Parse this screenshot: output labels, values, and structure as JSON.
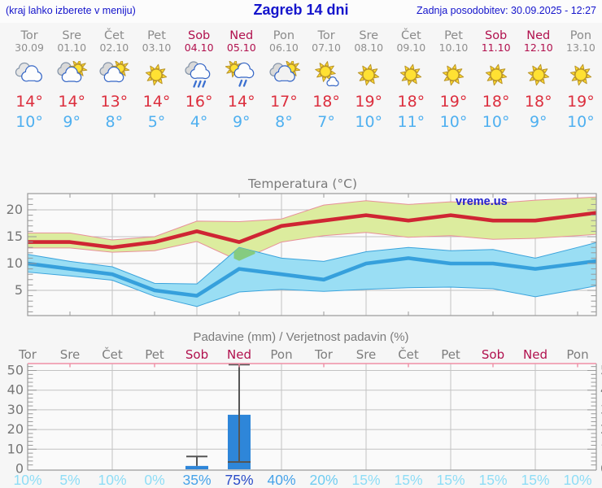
{
  "header": {
    "left_note": "(kraj lahko izberete v meniju)",
    "title": "Zagreb 14 dni",
    "updated": "Zadnja posodobitev: 30.09.2025 - 12:27"
  },
  "watermark": "vreme.us",
  "forecast": {
    "days": [
      {
        "name": "Tor",
        "date": "30.09",
        "weekend": false,
        "icon": "clouds",
        "high": "14°",
        "low": "10°"
      },
      {
        "name": "Sre",
        "date": "01.10",
        "weekend": false,
        "icon": "sun-cloud",
        "high": "14°",
        "low": "9°"
      },
      {
        "name": "Čet",
        "date": "02.10",
        "weekend": false,
        "icon": "sun-cloud",
        "high": "13°",
        "low": "8°"
      },
      {
        "name": "Pet",
        "date": "03.10",
        "weekend": false,
        "icon": "sun",
        "high": "14°",
        "low": "5°"
      },
      {
        "name": "Sob",
        "date": "04.10",
        "weekend": true,
        "icon": "cloud-rain",
        "high": "16°",
        "low": "4°"
      },
      {
        "name": "Ned",
        "date": "05.10",
        "weekend": true,
        "icon": "sun-rain",
        "high": "14°",
        "low": "9°"
      },
      {
        "name": "Pon",
        "date": "06.10",
        "weekend": false,
        "icon": "cloud-sun",
        "high": "17°",
        "low": "8°"
      },
      {
        "name": "Tor",
        "date": "07.10",
        "weekend": false,
        "icon": "sun-small-cloud",
        "high": "18°",
        "low": "7°"
      },
      {
        "name": "Sre",
        "date": "08.10",
        "weekend": false,
        "icon": "sun",
        "high": "19°",
        "low": "10°"
      },
      {
        "name": "Čet",
        "date": "09.10",
        "weekend": false,
        "icon": "sun",
        "high": "18°",
        "low": "11°"
      },
      {
        "name": "Pet",
        "date": "10.10",
        "weekend": false,
        "icon": "sun",
        "high": "19°",
        "low": "10°"
      },
      {
        "name": "Sob",
        "date": "11.10",
        "weekend": true,
        "icon": "sun",
        "high": "18°",
        "low": "10°"
      },
      {
        "name": "Ned",
        "date": "12.10",
        "weekend": true,
        "icon": "sun",
        "high": "18°",
        "low": "9°"
      },
      {
        "name": "Pon",
        "date": "13.10",
        "weekend": false,
        "icon": "sun",
        "high": "19°",
        "low": "10°"
      }
    ]
  },
  "chart_data": [
    {
      "type": "line",
      "title": "Temperatura (°C)",
      "categories": [
        "Tor",
        "Sre",
        "Čet",
        "Pet",
        "Sob",
        "Ned",
        "Pon",
        "Tor",
        "Sre",
        "Čet",
        "Pet",
        "Sob",
        "Ned",
        "Pon"
      ],
      "ylim": [
        0.3,
        23.2
      ],
      "yticks": [
        5,
        10,
        15,
        20
      ],
      "grid": true,
      "series": [
        {
          "name": "max-temp",
          "color": "#cf2533",
          "values": [
            14,
            14,
            13,
            14,
            16,
            14,
            17,
            18,
            19,
            18,
            19,
            18,
            18,
            19
          ]
        },
        {
          "name": "min-temp",
          "color": "#36a0dc",
          "values": [
            10,
            9,
            8,
            5,
            4,
            9,
            8,
            7,
            10,
            11,
            10,
            10,
            9,
            10
          ]
        }
      ],
      "bands": [
        {
          "name": "max-temp-range",
          "fill": "#dcec9e",
          "stroke": "#e8909a",
          "upper": [
            15.7,
            15.7,
            14.4,
            15.0,
            17.9,
            17.8,
            18.3,
            20.9,
            21.7,
            21.0,
            21.5,
            21.2,
            21.8,
            22.2
          ],
          "lower": [
            12.9,
            12.9,
            12.1,
            12.4,
            14.1,
            10.5,
            14.0,
            15.2,
            15.8,
            14.9,
            15.2,
            14.5,
            14.7,
            15.2
          ]
        },
        {
          "name": "min-temp-range",
          "fill": "#9adef4",
          "stroke": "#3aa3dc",
          "upper": [
            11.7,
            10.4,
            9.4,
            6.3,
            6.2,
            13.0,
            11.0,
            10.4,
            12.2,
            13.0,
            12.4,
            12.6,
            11.0,
            13.0
          ],
          "lower": [
            8.4,
            7.7,
            6.9,
            3.9,
            2.0,
            4.7,
            5.2,
            4.8,
            5.2,
            5.5,
            5.6,
            5.3,
            3.8,
            5.2
          ]
        }
      ],
      "overlap_color": "#85cb80"
    },
    {
      "type": "bar",
      "title": "Padavine (mm) / Verjetnost padavin (%)",
      "categories": [
        "Tor",
        "Sre",
        "Čet",
        "Pet",
        "Sob",
        "Ned",
        "Pon",
        "Tor",
        "Sre",
        "Čet",
        "Pet",
        "Sob",
        "Ned",
        "Pon"
      ],
      "weekend": [
        false,
        false,
        false,
        false,
        true,
        true,
        false,
        false,
        false,
        false,
        false,
        true,
        true,
        false
      ],
      "ylim": [
        0,
        53
      ],
      "yticks": [
        0,
        10,
        20,
        30,
        40,
        50
      ],
      "grid": true,
      "bar_color": "#2e86d9",
      "values": [
        0,
        0,
        0,
        0,
        1.5,
        27.5,
        0,
        0,
        0,
        0,
        0,
        0,
        0,
        0
      ],
      "whiskers": [
        {
          "index": 4,
          "low": 1.5,
          "high": 6.3,
          "caps": "top"
        },
        {
          "index": 5,
          "low": 3.5,
          "high": 53,
          "caps": "both"
        }
      ],
      "probabilities": [
        {
          "label": "10%",
          "color": "#8eddf6"
        },
        {
          "label": "5%",
          "color": "#8eddf6"
        },
        {
          "label": "10%",
          "color": "#8eddf6"
        },
        {
          "label": "0%",
          "color": "#8eddf6"
        },
        {
          "label": "35%",
          "color": "#47a3e9"
        },
        {
          "label": "75%",
          "color": "#2a4cc8"
        },
        {
          "label": "40%",
          "color": "#47a3e9"
        },
        {
          "label": "20%",
          "color": "#6fccf1"
        },
        {
          "label": "15%",
          "color": "#8eddf6"
        },
        {
          "label": "15%",
          "color": "#8eddf6"
        },
        {
          "label": "15%",
          "color": "#8eddf6"
        },
        {
          "label": "15%",
          "color": "#8eddf6"
        },
        {
          "label": "15%",
          "color": "#8eddf6"
        },
        {
          "label": "10%",
          "color": "#8eddf6"
        }
      ]
    }
  ],
  "colors": {
    "header_text": "#1414cc",
    "weekday": "#8b8b8b",
    "weekend": "#b1114e",
    "high_temp": "#dc2f3e",
    "low_temp": "#4fb0f0",
    "grid": "#c3c3c3",
    "plot_border": "#9a9a9a",
    "precip_top_border": "#ef8fa5",
    "whisker": "#555555",
    "axis_text": "#777777"
  }
}
